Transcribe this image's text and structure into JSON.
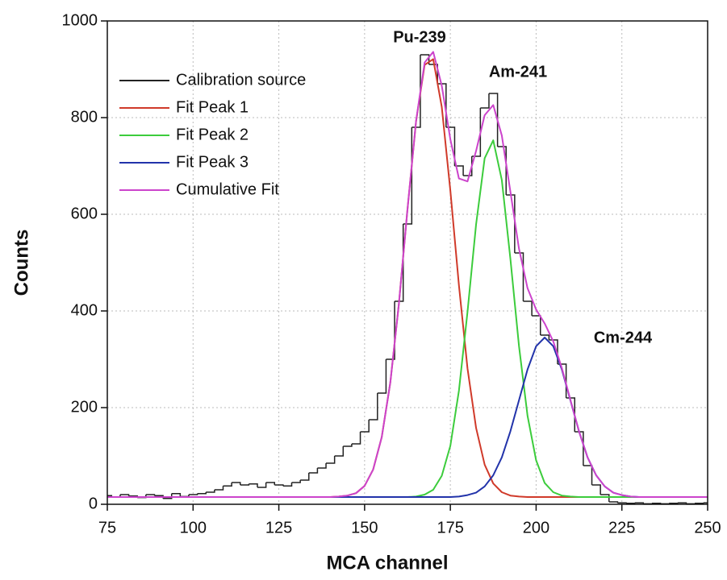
{
  "chart_data": {
    "type": "line",
    "xlabel": "MCA channel",
    "ylabel": "Counts",
    "xlim": [
      75,
      250
    ],
    "ylim": [
      0,
      1000
    ],
    "xticks": [
      75,
      100,
      125,
      150,
      175,
      200,
      225,
      250
    ],
    "yticks": [
      0,
      200,
      400,
      600,
      800,
      1000
    ],
    "grid": true,
    "legend": "upper left",
    "annotations": [
      "Pu-239",
      "Am-241",
      "Cm-244"
    ],
    "x": [
      75,
      77.5,
      80,
      82.5,
      85,
      87.5,
      90,
      92.5,
      95,
      97.5,
      100,
      102.5,
      105,
      107.5,
      110,
      112.5,
      115,
      117.5,
      120,
      122.5,
      125,
      127.5,
      130,
      132.5,
      135,
      137.5,
      140,
      142.5,
      145,
      147.5,
      150,
      152.5,
      155,
      157.5,
      160,
      162.5,
      165,
      167.5,
      170,
      172.5,
      175,
      177.5,
      180,
      182.5,
      185,
      187.5,
      190,
      192.5,
      195,
      197.5,
      200,
      202.5,
      205,
      207.5,
      210,
      212.5,
      215,
      217.5,
      220,
      222.5,
      225,
      227.5,
      230,
      232.5,
      235,
      237.5,
      240,
      242.5,
      245,
      247.5,
      250
    ],
    "series": [
      {
        "name": "Calibration source",
        "color": "#222222",
        "drawstyle": "steps-mid",
        "values": [
          18,
          15,
          20,
          17,
          14,
          20,
          18,
          12,
          22,
          16,
          20,
          22,
          25,
          30,
          38,
          45,
          40,
          42,
          35,
          45,
          40,
          38,
          45,
          50,
          65,
          75,
          85,
          100,
          120,
          125,
          150,
          175,
          230,
          300,
          420,
          580,
          780,
          930,
          910,
          870,
          780,
          700,
          680,
          720,
          820,
          850,
          740,
          640,
          520,
          420,
          390,
          350,
          340,
          290,
          220,
          150,
          80,
          40,
          20,
          5,
          3,
          2,
          3,
          1,
          2,
          1,
          2,
          3,
          1,
          2,
          3
        ]
      },
      {
        "name": "Fit Peak 1",
        "color": "#d03a2a",
        "values": [
          15,
          15,
          15,
          15,
          15,
          15,
          15,
          15,
          15,
          15,
          15,
          15,
          15,
          15,
          15,
          15,
          15,
          15,
          15,
          15,
          15,
          15,
          15,
          15,
          15,
          15,
          15,
          16,
          18,
          23,
          38,
          72,
          139,
          252,
          415,
          610,
          792,
          909,
          921,
          822,
          649,
          453,
          281,
          158,
          82,
          43,
          25,
          18,
          16,
          15,
          15,
          15,
          15,
          15,
          15,
          15,
          15,
          15,
          15,
          15,
          15,
          15,
          15,
          15,
          15,
          15,
          15,
          15,
          15,
          15,
          15
        ]
      },
      {
        "name": "Fit Peak 2",
        "color": "#3ccc3c",
        "values": [
          15,
          15,
          15,
          15,
          15,
          15,
          15,
          15,
          15,
          15,
          15,
          15,
          15,
          15,
          15,
          15,
          15,
          15,
          15,
          15,
          15,
          15,
          15,
          15,
          15,
          15,
          15,
          15,
          15,
          15,
          15,
          15,
          15,
          15,
          15,
          15,
          16,
          20,
          30,
          59,
          121,
          235,
          398,
          579,
          716,
          753,
          671,
          508,
          328,
          183,
          91,
          44,
          25,
          18,
          16,
          15,
          15,
          15,
          15,
          15,
          15,
          15,
          15,
          15,
          15,
          15,
          15,
          15,
          15,
          15,
          15
        ]
      },
      {
        "name": "Fit Peak 3",
        "color": "#2233aa",
        "values": [
          15,
          15,
          15,
          15,
          15,
          15,
          15,
          15,
          15,
          15,
          15,
          15,
          15,
          15,
          15,
          15,
          15,
          15,
          15,
          15,
          15,
          15,
          15,
          15,
          15,
          15,
          15,
          15,
          15,
          15,
          15,
          15,
          15,
          15,
          15,
          15,
          15,
          15,
          15,
          15,
          15,
          16,
          19,
          24,
          37,
          60,
          97,
          151,
          215,
          279,
          327,
          345,
          327,
          279,
          215,
          151,
          97,
          60,
          37,
          24,
          19,
          16,
          15,
          15,
          15,
          15,
          15,
          15,
          15,
          15,
          15
        ]
      },
      {
        "name": "Cumulative Fit",
        "color": "#cc44cc",
        "values": [
          15,
          15,
          15,
          15,
          15,
          15,
          15,
          15,
          15,
          15,
          15,
          15,
          15,
          15,
          15,
          15,
          15,
          15,
          15,
          15,
          15,
          15,
          15,
          15,
          15,
          15,
          15,
          16,
          18,
          23,
          38,
          72,
          139,
          252,
          415,
          610,
          793,
          914,
          936,
          866,
          755,
          674,
          668,
          731,
          805,
          826,
          763,
          647,
          529,
          447,
          403,
          374,
          337,
          282,
          216,
          151,
          97,
          60,
          37,
          24,
          19,
          16,
          15,
          15,
          15,
          15,
          15,
          15,
          15,
          15,
          15
        ]
      }
    ]
  }
}
